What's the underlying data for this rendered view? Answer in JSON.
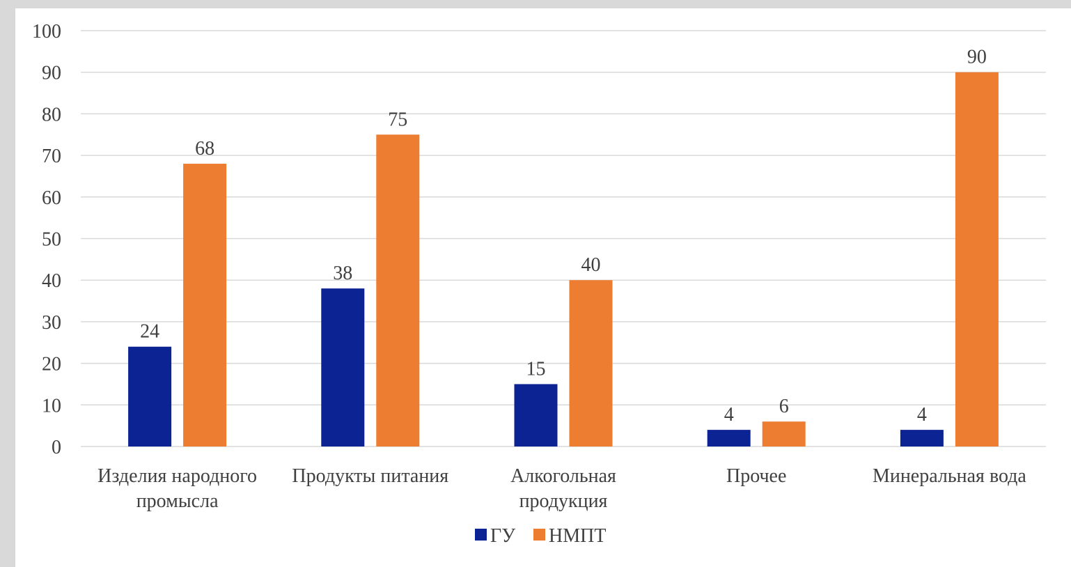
{
  "chart_data": {
    "type": "bar",
    "title": "",
    "xlabel": "",
    "ylabel": "",
    "ylim": [
      0,
      100
    ],
    "yticks": [
      "0",
      "10",
      "20",
      "30",
      "40",
      "50",
      "60",
      "70",
      "80",
      "90",
      "100"
    ],
    "categories": [
      [
        "Изделия народного",
        "промысла"
      ],
      [
        "Продукты питания"
      ],
      [
        "Алкогольная",
        "продукция"
      ],
      [
        "Прочее"
      ],
      [
        "Минеральная вода"
      ]
    ],
    "series": [
      {
        "name": "ГУ",
        "color": "#0c2394",
        "values": [
          24,
          38,
          15,
          4,
          4
        ]
      },
      {
        "name": "НМПТ",
        "color": "#ed7d31",
        "values": [
          68,
          75,
          40,
          6,
          90
        ]
      }
    ],
    "grid": true,
    "legend_position": "bottom"
  }
}
